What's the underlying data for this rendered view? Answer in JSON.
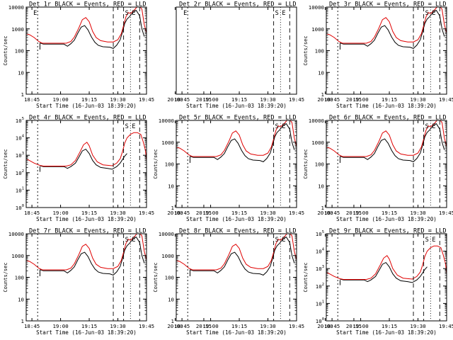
{
  "colors": {
    "events": "#000000",
    "lld": "#e00000",
    "background": "#ffffff"
  },
  "xlabel": "Start Time (16-Jun-03 18:39:20)",
  "ylabel": "Counts/sec",
  "x_ticks": [
    "18:45",
    "19:00",
    "19:15",
    "19:30",
    "19:45",
    "20:00",
    "20:15"
  ],
  "chart_data": [
    {
      "type": "line",
      "title": "Det 1r BLACK = Events, RED = LLD",
      "y_scale": "log",
      "ylim": [
        1,
        10000
      ],
      "y_ticks": [
        "10000",
        "1000",
        "100",
        "10",
        "1"
      ],
      "markers": [
        "E",
        "S",
        "E"
      ]
    },
    {
      "type": "line",
      "title": "Det 2r BLACK = Events, RED = LLD",
      "y_scale": "log",
      "ylim": [
        1,
        10000
      ],
      "y_ticks": [],
      "markers": [
        "E",
        "S",
        "E"
      ],
      "series": []
    },
    {
      "type": "line",
      "title": "Det 3r BLACK = Events, RED = LLD",
      "y_scale": "log",
      "ylim": [
        1,
        10000
      ],
      "y_ticks": [
        "10000",
        "1000",
        "100",
        "10",
        "1"
      ],
      "markers": [
        "S",
        "E"
      ]
    },
    {
      "type": "line",
      "title": "Det 4r BLACK = Events, RED = LLD",
      "y_scale": "log",
      "ylim": [
        1,
        100000
      ],
      "y_ticks": [
        "10^5",
        "10^4",
        "10^3",
        "10^2",
        "10^1",
        "10^0"
      ],
      "markers": [
        "S",
        "E"
      ]
    },
    {
      "type": "line",
      "title": "Det 5r BLACK = Events, RED = LLD",
      "y_scale": "log",
      "ylim": [
        1,
        10000
      ],
      "y_ticks": [
        "10000",
        "1000",
        "100",
        "10",
        "1"
      ],
      "markers": [
        "S",
        "E"
      ]
    },
    {
      "type": "line",
      "title": "Det 6r BLACK = Events, RED = LLD",
      "y_scale": "log",
      "ylim": [
        1,
        10000
      ],
      "y_ticks": [
        "10000",
        "1000",
        "100",
        "10",
        "1"
      ],
      "markers": [
        "S",
        "E"
      ]
    },
    {
      "type": "line",
      "title": "Det 7r BLACK = Events, RED = LLD",
      "y_scale": "log",
      "ylim": [
        1,
        10000
      ],
      "y_ticks": [
        "10000",
        "1000",
        "100",
        "10",
        "1"
      ],
      "markers": [
        "S",
        "E"
      ]
    },
    {
      "type": "line",
      "title": "Det 8r BLACK = Events, RED = LLD",
      "y_scale": "log",
      "ylim": [
        1,
        10000
      ],
      "y_ticks": [
        "10000",
        "1000",
        "100",
        "10",
        "1"
      ],
      "markers": [
        "S",
        "E"
      ]
    },
    {
      "type": "line",
      "title": "Det 9r BLACK = Events, RED = LLD",
      "y_scale": "log",
      "ylim": [
        1,
        100000
      ],
      "y_ticks": [
        "10^5",
        "10^4",
        "10^3",
        "10^2",
        "10^1",
        "10^0"
      ],
      "markers": [
        "S",
        "E"
      ]
    }
  ]
}
